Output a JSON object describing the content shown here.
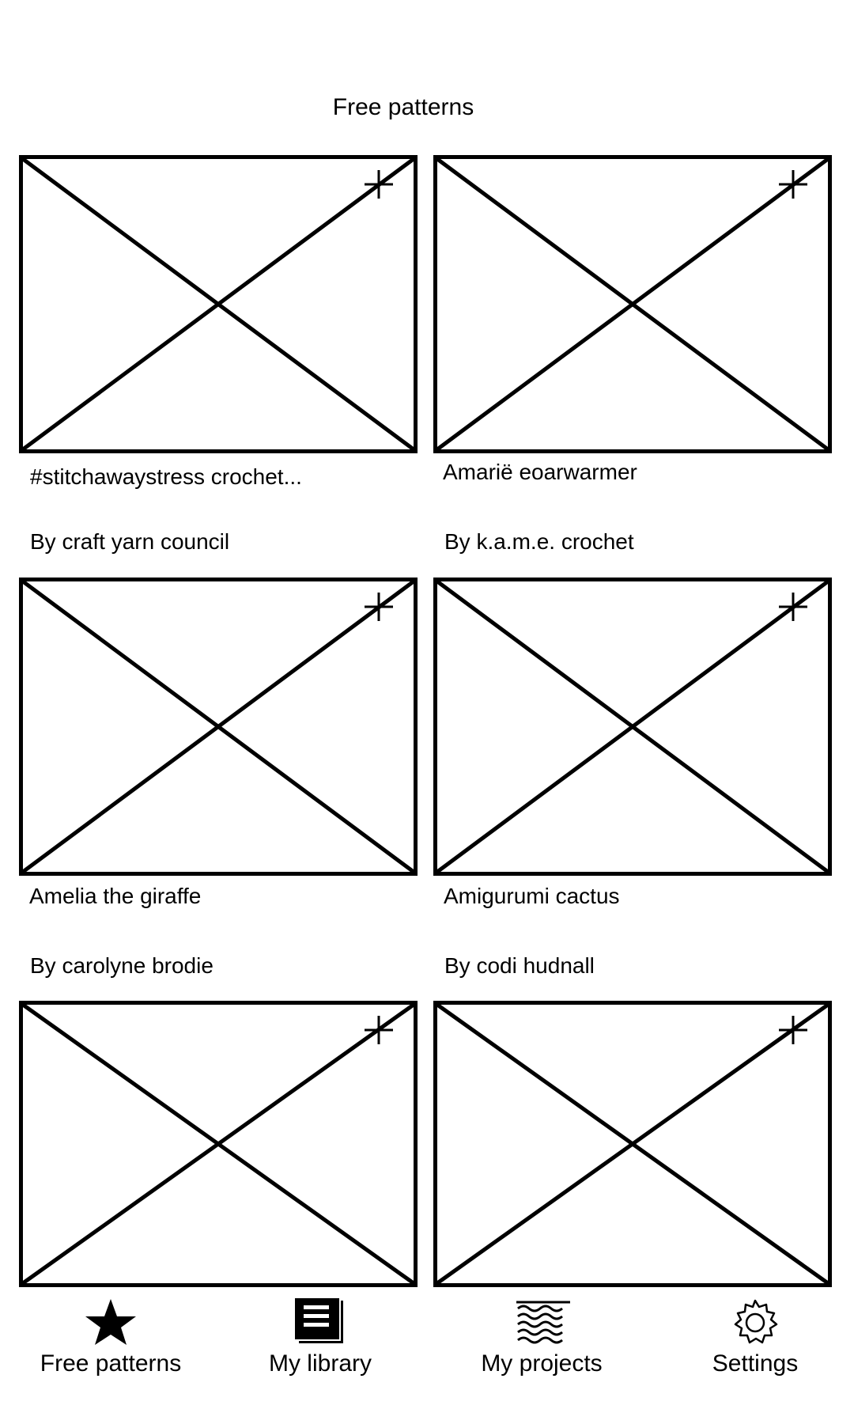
{
  "header": {
    "title": "Free patterns"
  },
  "patterns": [
    {
      "name": "#stitchawaystress crochet...",
      "author": "By craft yarn council"
    },
    {
      "name": "Amariё eoarwarmer",
      "author": "By k.a.m.e. crochet"
    },
    {
      "name": "Amelia the giraffe",
      "author": "By carolyne brodie"
    },
    {
      "name": "Amigurumi cactus",
      "author": "By codi hudnall"
    },
    {
      "name": "",
      "author": ""
    },
    {
      "name": "",
      "author": ""
    }
  ],
  "icons": {
    "add": "plus-icon",
    "placeholder": "image-placeholder-icon"
  },
  "nav": {
    "items": [
      {
        "label": "Free patterns",
        "icon": "star-icon"
      },
      {
        "label": "My library",
        "icon": "library-icon"
      },
      {
        "label": "My projects",
        "icon": "yarn-waves-icon"
      },
      {
        "label": "Settings",
        "icon": "gear-icon"
      }
    ]
  }
}
